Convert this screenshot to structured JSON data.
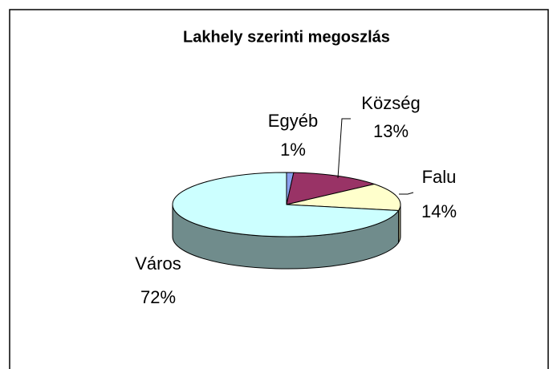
{
  "chart_data": {
    "type": "pie",
    "title": "Lakhely szerinti megoszlás",
    "categories": [
      "Egyéb",
      "Község",
      "Falu",
      "Város"
    ],
    "values": [
      1,
      13,
      14,
      72
    ],
    "value_labels": [
      "1%",
      "13%",
      "14%",
      "72%"
    ],
    "colors": [
      "#8aa0ee",
      "#993366",
      "#ffffcc",
      "#ccffff"
    ]
  }
}
